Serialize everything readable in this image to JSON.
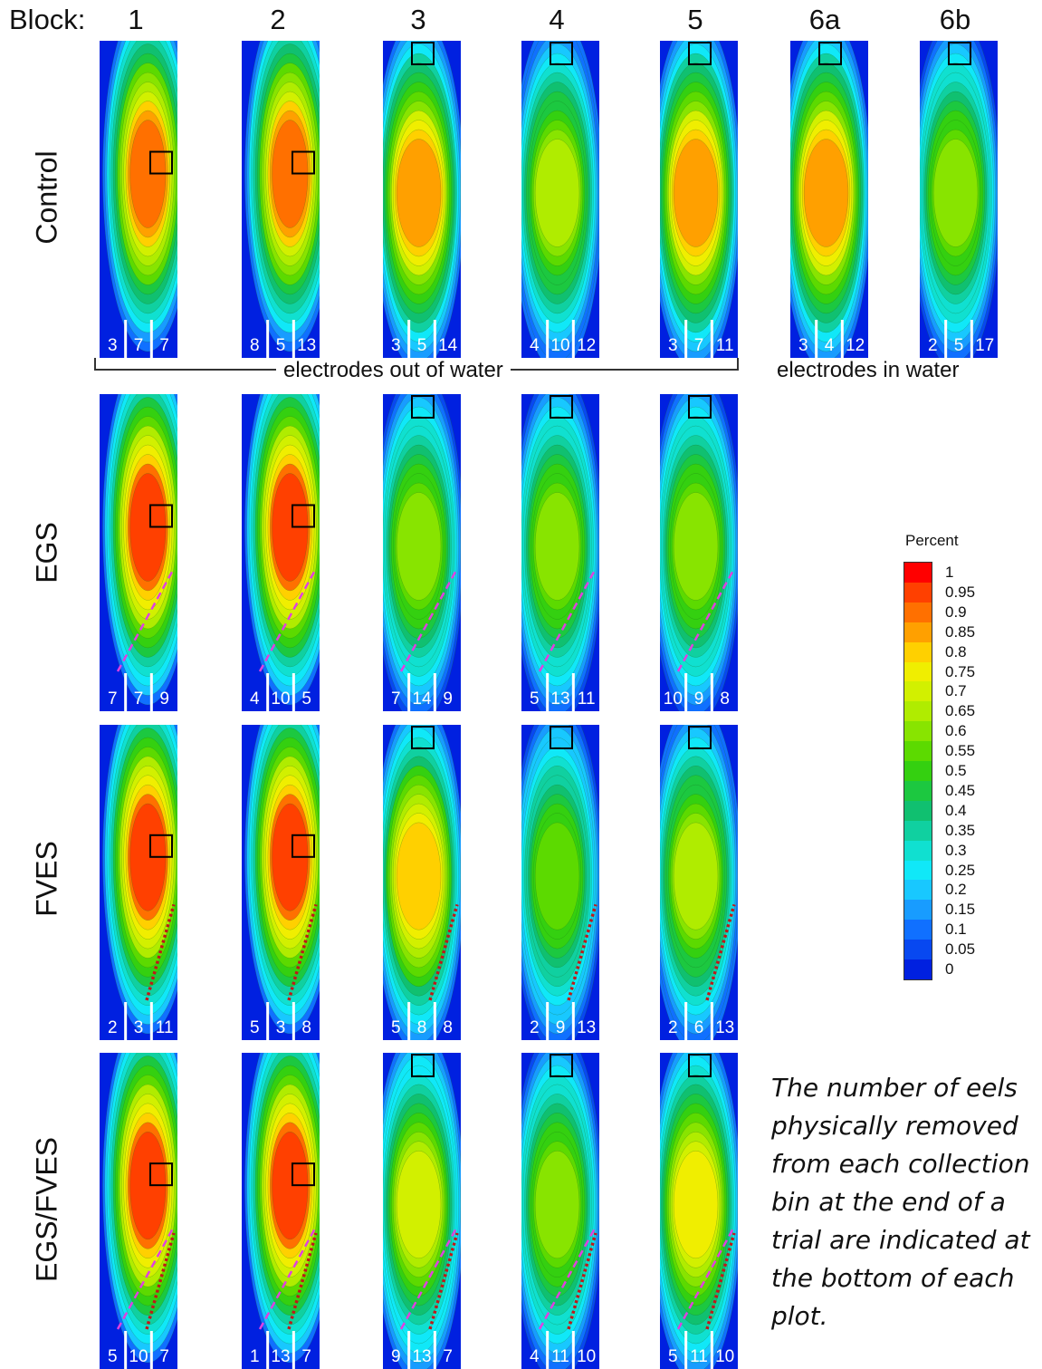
{
  "block_prefix": "Block:",
  "blocks": [
    "1",
    "2",
    "3",
    "4",
    "5",
    "6a",
    "6b"
  ],
  "rows": [
    "Control",
    "EGS",
    "FVES",
    "EGS/FVES"
  ],
  "labels": {
    "out_of_water": "electrodes out of water",
    "in_water": "electrodes in water"
  },
  "colorbar": {
    "title": "Percent",
    "ticks": [
      "1",
      "0.95",
      "0.9",
      "0.85",
      "0.8",
      "0.75",
      "0.7",
      "0.65",
      "0.6",
      "0.55",
      "0.5",
      "0.45",
      "0.4",
      "0.35",
      "0.3",
      "0.25",
      "0.2",
      "0.15",
      "0.1",
      "0.05",
      "0"
    ],
    "colors": [
      "#ff0000",
      "#ff4000",
      "#ff7000",
      "#ffa000",
      "#ffd000",
      "#f0ee00",
      "#d2f000",
      "#b0ec00",
      "#88e400",
      "#5cda00",
      "#34d010",
      "#1cc840",
      "#10c070",
      "#10d0a0",
      "#10e0d0",
      "#10e8f8",
      "#18c8ff",
      "#189cff",
      "#1070ff",
      "#0848f0",
      "#0020e0"
    ]
  },
  "note": "The number of eels physically removed from each collection bin at the end of a trial are indicated at the bottom of each plot.",
  "chart_data": {
    "type": "heatmap",
    "xlabel": "Block",
    "colorbar_label": "Percent",
    "zlim": [
      0,
      1
    ],
    "series": [
      {
        "name": "Control",
        "blocks": [
          "1",
          "2",
          "3",
          "4",
          "5",
          "6a",
          "6b"
        ],
        "bin_counts": [
          [
            3,
            7,
            7
          ],
          [
            8,
            5,
            13
          ],
          [
            3,
            5,
            14
          ],
          [
            4,
            10,
            12
          ],
          [
            3,
            7,
            11
          ],
          [
            3,
            4,
            12
          ],
          [
            2,
            5,
            17
          ]
        ],
        "peak_percent": [
          0.9,
          0.9,
          0.85,
          0.65,
          0.85,
          0.85,
          0.6
        ]
      },
      {
        "name": "EGS",
        "blocks": [
          "1",
          "2",
          "3",
          "4",
          "5"
        ],
        "bin_counts": [
          [
            7,
            7,
            9
          ],
          [
            4,
            10,
            5
          ],
          [
            7,
            14,
            9
          ],
          [
            5,
            13,
            11
          ],
          [
            10,
            9,
            8
          ]
        ],
        "peak_percent": [
          0.95,
          0.95,
          0.6,
          0.6,
          0.6
        ]
      },
      {
        "name": "FVES",
        "blocks": [
          "1",
          "2",
          "3",
          "4",
          "5"
        ],
        "bin_counts": [
          [
            2,
            3,
            11
          ],
          [
            5,
            3,
            8
          ],
          [
            5,
            8,
            8
          ],
          [
            2,
            9,
            13
          ],
          [
            2,
            6,
            13
          ]
        ],
        "peak_percent": [
          0.95,
          0.95,
          0.8,
          0.55,
          0.65
        ]
      },
      {
        "name": "EGS/FVES",
        "blocks": [
          "1",
          "2",
          "3",
          "4",
          "5"
        ],
        "bin_counts": [
          [
            5,
            10,
            7
          ],
          [
            1,
            13,
            7
          ],
          [
            9,
            13,
            7
          ],
          [
            4,
            11,
            10
          ],
          [
            5,
            11,
            10
          ]
        ],
        "peak_percent": [
          0.95,
          0.95,
          0.7,
          0.6,
          0.75
        ]
      }
    ]
  }
}
